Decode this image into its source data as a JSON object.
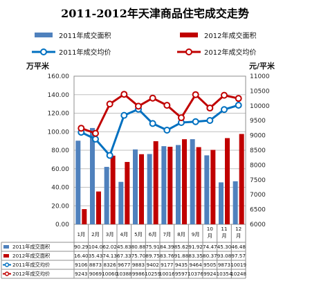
{
  "chart_data": {
    "type": "bar",
    "title": "2011-2012年天津商品住宅成交走势",
    "left_unit": "万平米",
    "right_unit": "元/平米",
    "categories": [
      "1月",
      "2月",
      "3月",
      "4月",
      "5月",
      "6月",
      "7月",
      "8月",
      "9月",
      "10\n月",
      "11\n月",
      "12\n月"
    ],
    "y_left_lim": [
      0,
      160
    ],
    "y_left_ticks": [
      "0.00",
      "20.00",
      "40.00",
      "60.00",
      "80.00",
      "100.00",
      "120.00",
      "140.00",
      "160.00"
    ],
    "y_right_lim": [
      6000,
      11000
    ],
    "y_right_ticks": [
      "6000",
      "6500",
      "7000",
      "7500",
      "8000",
      "8500",
      "9000",
      "9500",
      "10000",
      "10500",
      "11000"
    ],
    "grid": true,
    "legend_position": "top",
    "series": [
      {
        "name": "2011年成交面积",
        "kind": "bar",
        "axis": "left",
        "color": "#4f81bd",
        "values": [
          90.29,
          104.0,
          62.02,
          45.83,
          80.88,
          75.91,
          84.39,
          85.62,
          91.92,
          74.47,
          45.3,
          46.48
        ],
        "labels": [
          "90.29",
          "104.0",
          "62.02",
          "45.83",
          "80.88",
          "75.91",
          "84.39",
          "85.62",
          "91.92",
          "74.47",
          "45.30",
          "46.48"
        ]
      },
      {
        "name": "2012年成交面积",
        "kind": "bar",
        "axis": "left",
        "color": "#c00000",
        "values": [
          16.4,
          35.43,
          74.13,
          67.33,
          75.7,
          89.75,
          83.76,
          91.88,
          83.35,
          80.37,
          93.08,
          97.57
        ],
        "labels": [
          "16.40",
          "35.43",
          "74.13",
          "67.33",
          "75.70",
          "89.75",
          "83.76",
          "91.88",
          "83.35",
          "80.37",
          "93.08",
          "97.57"
        ]
      },
      {
        "name": "2011年成交均价",
        "kind": "line",
        "axis": "right",
        "color": "#0070c0",
        "values": [
          9106,
          8873,
          8326,
          9677,
          9883,
          9402,
          9177,
          9435,
          9464,
          9505,
          9873,
          10019
        ],
        "labels": [
          "9106",
          "8873",
          "8326",
          "9677",
          "9883",
          "9402",
          "9177",
          "9435",
          "9464",
          "9505",
          "9873",
          "10019"
        ]
      },
      {
        "name": "2012年成交均价",
        "kind": "line",
        "axis": "right",
        "color": "#c00000",
        "values": [
          9243,
          9069,
          10060,
          10388,
          9986,
          10259,
          10016,
          9597,
          10376,
          9924,
          10354,
          10248
        ],
        "labels": [
          "9243",
          "9069",
          "10060",
          "10388",
          "9986",
          "10259",
          "10016",
          "9597",
          "10376",
          "9924",
          "10354",
          "10248"
        ]
      }
    ]
  }
}
